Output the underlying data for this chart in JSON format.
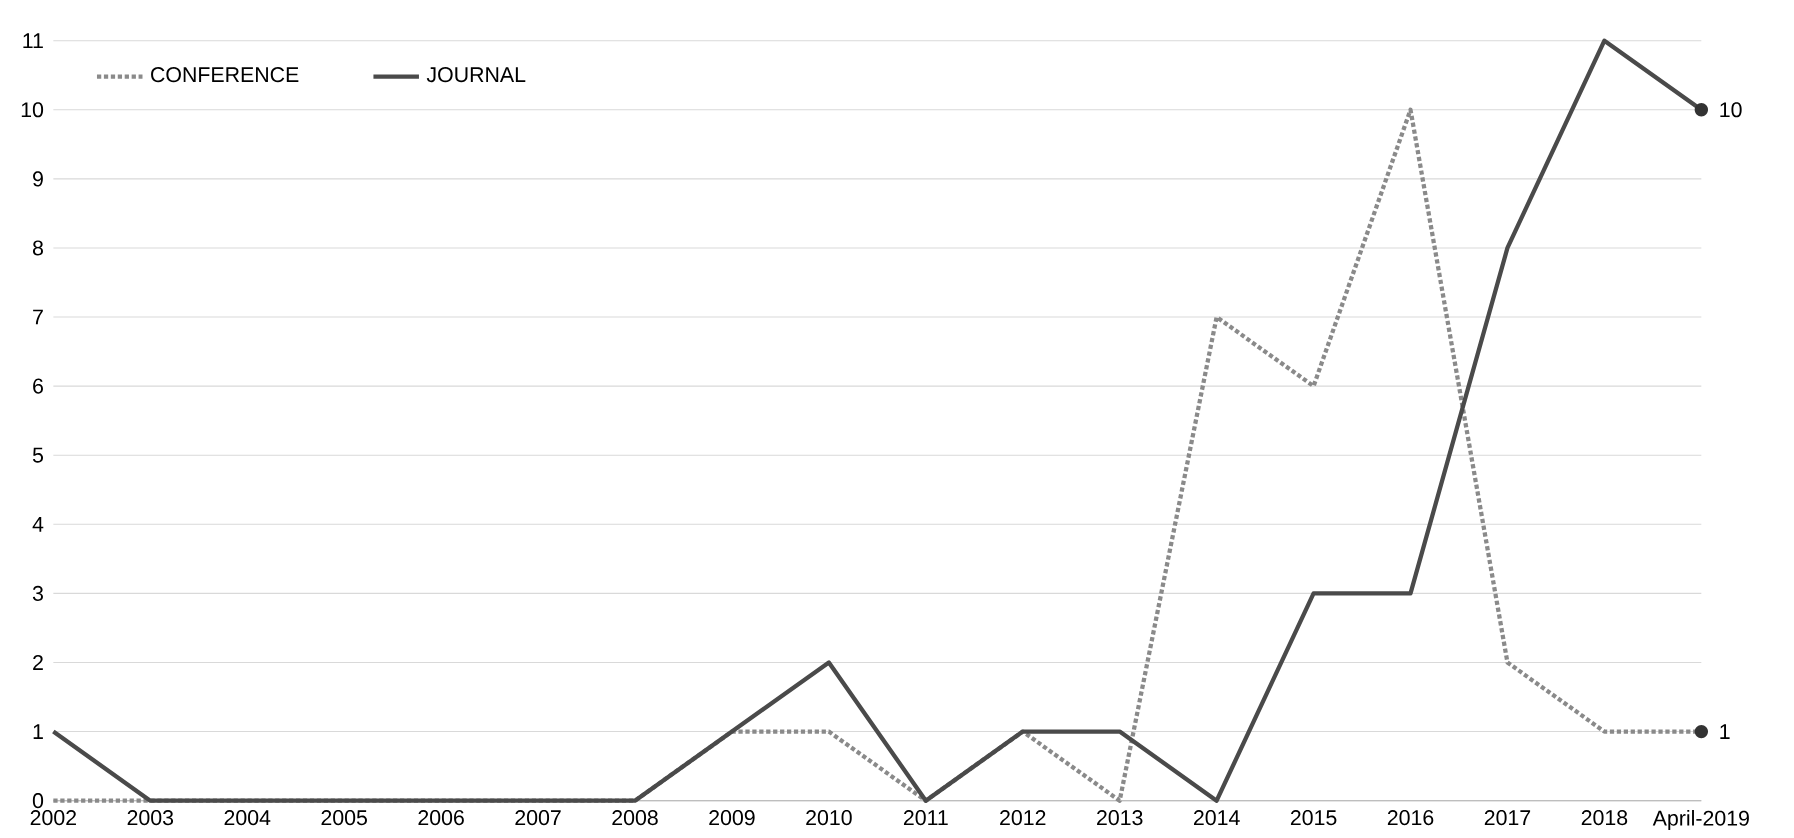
{
  "chart_data": {
    "type": "line",
    "categories": [
      "2002",
      "2003",
      "2004",
      "2005",
      "2006",
      "2007",
      "2008",
      "2009",
      "2010",
      "2011",
      "2012",
      "2013",
      "2014",
      "2015",
      "2016",
      "2017",
      "2018",
      "April-2019"
    ],
    "series": [
      {
        "name": "CONFERENCE",
        "color": "#8a8a8a",
        "line_style": "dotted",
        "values": [
          0,
          0,
          0,
          0,
          0,
          0,
          0,
          1,
          1,
          0,
          1,
          0,
          7,
          6,
          10,
          2,
          1,
          1
        ]
      },
      {
        "name": "JOURNAL",
        "color": "#4a4a4a",
        "line_style": "solid",
        "values": [
          1,
          0,
          0,
          0,
          0,
          0,
          0,
          1,
          2,
          0,
          1,
          1,
          0,
          3,
          3,
          8,
          11,
          10
        ]
      }
    ],
    "ylim": [
      0,
      11
    ],
    "yticks": [
      0,
      1,
      2,
      3,
      4,
      5,
      6,
      7,
      8,
      9,
      10,
      11
    ],
    "grid": "y",
    "legend": "top left",
    "marker": "none",
    "annotations": [
      {
        "text": "10",
        "x": "April-2019",
        "y": 10
      },
      {
        "text": "1",
        "x": "April-2019",
        "y": 1
      }
    ]
  }
}
